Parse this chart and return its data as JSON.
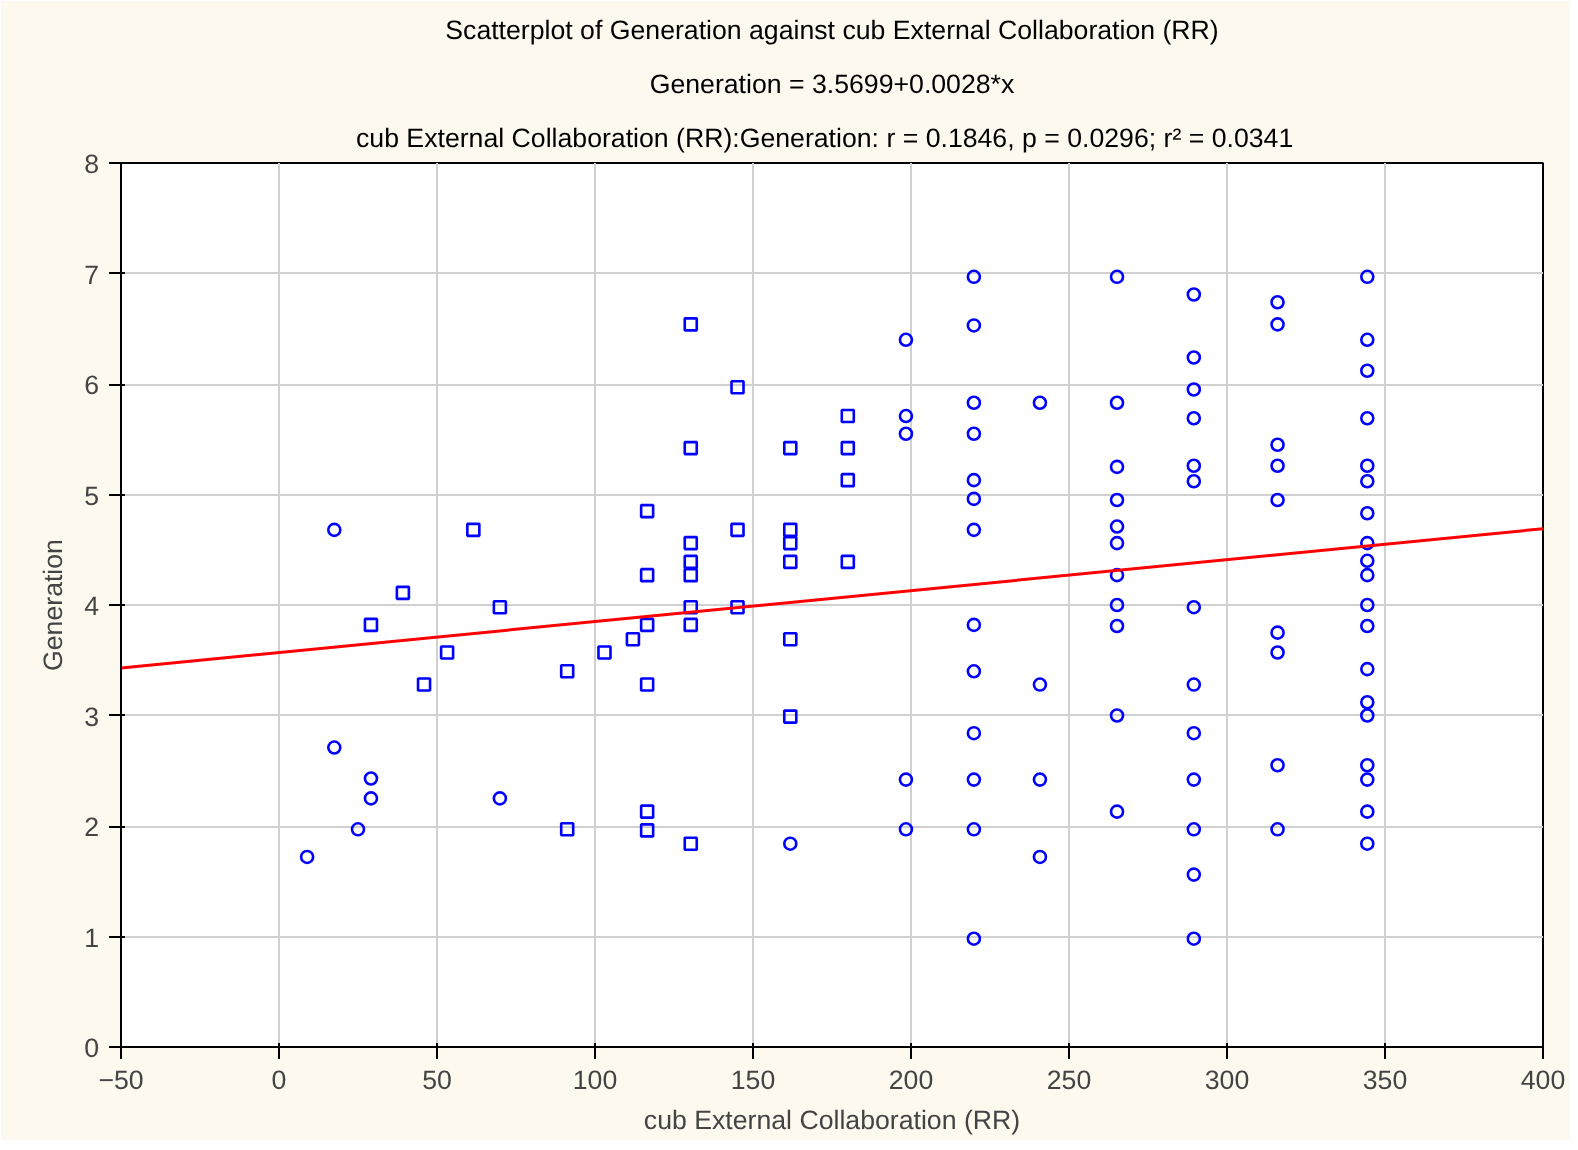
{
  "chart_data": {
    "type": "scatter",
    "title": "Scatterplot of Generation against cub External Collaboration (RR)",
    "subtitle": "Generation = 3.5699+0.0028*x",
    "annotations": [
      "cub External Collaboration (RR):Generation:   r = 0.1846, p = 0.0296; r² = 0.0341"
    ],
    "xlabel": "cub External Collaboration (RR)",
    "ylabel": "Generation",
    "xlim": [
      -50,
      400
    ],
    "ylim": [
      0,
      8
    ],
    "xticks": [
      -50,
      0,
      50,
      100,
      150,
      200,
      250,
      300,
      350,
      400
    ],
    "yticks": [
      0,
      1,
      2,
      3,
      4,
      5,
      6,
      7,
      8
    ],
    "grid": true,
    "series": [
      {
        "marker": "circle",
        "color": "#0000ff",
        "x": [
          8.9,
          17.5,
          17.5,
          25,
          29.1,
          29.1,
          69.9,
          161.8,
          198.4,
          198.4,
          198.4,
          198.4,
          198.4,
          219.9,
          219.9,
          219.9,
          219.9,
          219.9,
          219.9,
          219.9,
          219.9,
          219.9,
          219.9,
          219.9,
          219.9,
          219.9,
          240.8,
          240.8,
          240.8,
          240.8,
          265.2,
          265.2,
          265.2,
          265.2,
          265.2,
          265.2,
          265.2,
          265.2,
          265.2,
          265.2,
          265.2,
          289.5,
          289.5,
          289.5,
          289.5,
          289.5,
          289.5,
          289.5,
          289.5,
          289.5,
          289.5,
          289.5,
          289.5,
          289.5,
          316,
          316,
          316,
          316,
          316,
          316,
          316,
          316,
          316,
          344.4,
          344.4,
          344.4,
          344.4,
          344.4,
          344.4,
          344.4,
          344.4,
          344.4,
          344.4,
          344.4,
          344.4,
          344.4,
          344.4,
          344.4,
          344.4,
          344.4,
          344.4,
          344.4
        ],
        "values": [
          1.72,
          4.68,
          2.71,
          1.97,
          2.43,
          2.25,
          2.25,
          1.84,
          6.4,
          5.71,
          5.55,
          2.42,
          1.97,
          6.97,
          6.53,
          5.83,
          5.55,
          5.13,
          4.96,
          4.68,
          3.82,
          3.4,
          2.84,
          2.42,
          1.97,
          0.98,
          5.83,
          3.28,
          2.42,
          1.72,
          6.97,
          5.83,
          5.25,
          4.95,
          4.71,
          4.56,
          4.27,
          4.0,
          3.81,
          3.0,
          2.13,
          6.81,
          6.24,
          5.95,
          5.69,
          5.26,
          5.12,
          3.98,
          3.28,
          2.84,
          2.42,
          1.97,
          1.56,
          0.98,
          6.74,
          6.54,
          5.45,
          5.26,
          4.95,
          3.75,
          3.57,
          2.55,
          1.97,
          6.97,
          6.4,
          6.12,
          5.69,
          5.26,
          5.12,
          4.83,
          4.56,
          4.4,
          4.27,
          4.0,
          3.81,
          3.42,
          3.12,
          3.0,
          2.55,
          2.42,
          2.13,
          1.84
        ]
      },
      {
        "marker": "square",
        "color": "#0000ff",
        "x": [
          39.2,
          29.1,
          61.5,
          69.9,
          53.2,
          45.9,
          91.2,
          91.2,
          103,
          112,
          116.5,
          116.5,
          116.5,
          116.5,
          116.5,
          116.5,
          130.3,
          130.3,
          130.3,
          130.3,
          130.3,
          130.3,
          130.3,
          130.3,
          145.1,
          145.1,
          145.1,
          161.8,
          161.8,
          161.8,
          161.8,
          161.8,
          161.8,
          180,
          180,
          180,
          180
        ],
        "values": [
          4.11,
          3.82,
          4.68,
          3.98,
          3.57,
          3.28,
          3.4,
          1.97,
          3.57,
          3.69,
          4.85,
          4.27,
          3.82,
          3.28,
          2.13,
          1.96,
          6.54,
          5.42,
          4.56,
          4.39,
          4.27,
          3.98,
          3.82,
          1.84,
          5.97,
          4.68,
          3.98,
          5.42,
          4.68,
          4.56,
          4.39,
          3.69,
          2.99,
          5.71,
          5.42,
          5.13,
          4.39
        ]
      },
      {
        "type": "line",
        "color": "#ff0000",
        "x": [
          -50,
          400
        ],
        "values": [
          3.43,
          4.69
        ]
      }
    ]
  }
}
